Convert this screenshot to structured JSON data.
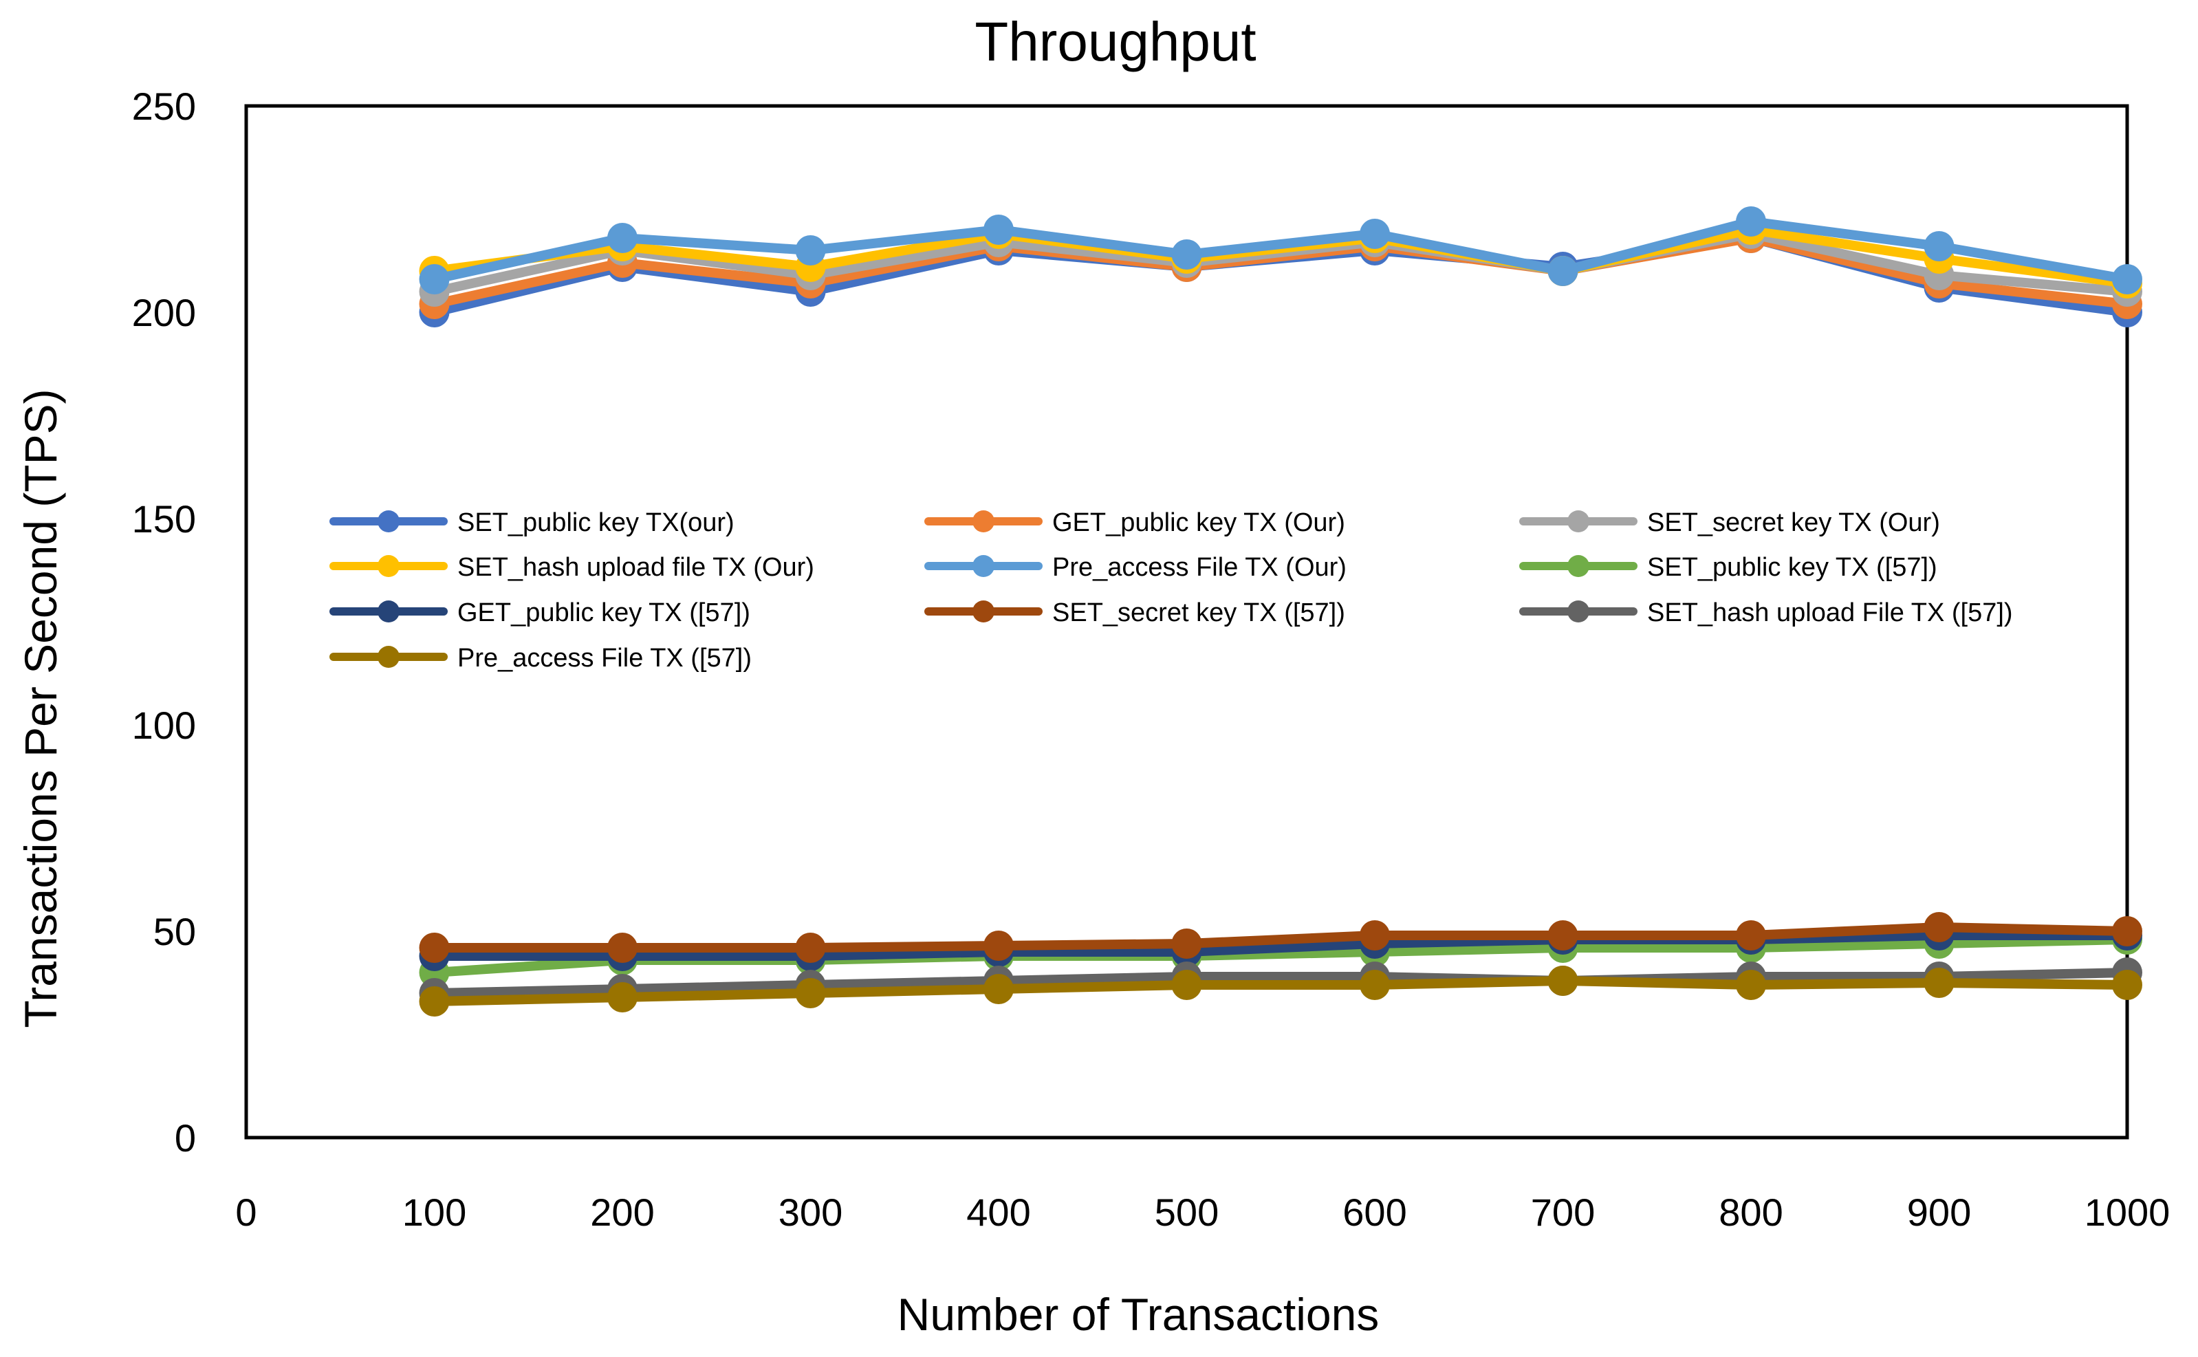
{
  "chart_data": {
    "type": "line",
    "title": "Throughput",
    "xlabel": "Number of Transactions",
    "ylabel": "Transactions Per Second (TPS)",
    "xlim": [
      0,
      1000
    ],
    "ylim": [
      0,
      250
    ],
    "xticks": [
      0,
      100,
      200,
      300,
      400,
      500,
      600,
      700,
      800,
      900,
      1000
    ],
    "yticks": [
      0,
      50,
      100,
      150,
      200,
      250
    ],
    "x": [
      100,
      200,
      300,
      400,
      500,
      600,
      700,
      800,
      900,
      1000
    ],
    "grid": false,
    "legend_position": "center",
    "series": [
      {
        "name": "SET_public key TX(our)",
        "color": "#4472C4",
        "values": [
          200,
          211,
          205,
          215,
          211,
          215,
          211,
          218,
          206,
          200
        ]
      },
      {
        "name": "GET_public key  TX (Our)",
        "color": "#ED7D31",
        "values": [
          202,
          212,
          207,
          216,
          211,
          216,
          210,
          218,
          207,
          202
        ]
      },
      {
        "name": "SET_secret key TX (Our)",
        "color": "#A5A5A5",
        "values": [
          205,
          215,
          209,
          217,
          212,
          217,
          210,
          219,
          209,
          205
        ]
      },
      {
        "name": "SET_hash upload file TX (Our)",
        "color": "#FFC000",
        "values": [
          210,
          216,
          211,
          219,
          213,
          218,
          210,
          220,
          213,
          207
        ]
      },
      {
        "name": "Pre_access File TX (Our)",
        "color": "#5B9BD5",
        "values": [
          208,
          218,
          215,
          220,
          214,
          219,
          210,
          222,
          216,
          208
        ]
      },
      {
        "name": "SET_public key TX ([57])",
        "color": "#70AD47",
        "values": [
          40,
          43,
          43,
          44,
          44,
          45,
          46,
          46,
          47,
          48
        ]
      },
      {
        "name": "GET_public key TX ([57])",
        "color": "#264478",
        "values": [
          44,
          44,
          44,
          45,
          45,
          47,
          48,
          48,
          49,
          49
        ]
      },
      {
        "name": "SET_secret key  TX ([57])",
        "color": "#9E480E",
        "values": [
          46,
          46,
          46,
          46.5,
          47,
          49,
          49,
          49,
          51,
          50
        ]
      },
      {
        "name": "SET_hash upload File TX ([57])",
        "color": "#636363",
        "values": [
          35,
          36,
          37,
          38,
          39,
          39,
          38,
          39,
          39,
          40
        ]
      },
      {
        "name": "Pre_access File TX ([57])",
        "color": "#997300",
        "values": [
          33,
          34,
          35,
          36,
          37,
          37,
          38,
          37,
          37.5,
          37
        ]
      }
    ]
  }
}
